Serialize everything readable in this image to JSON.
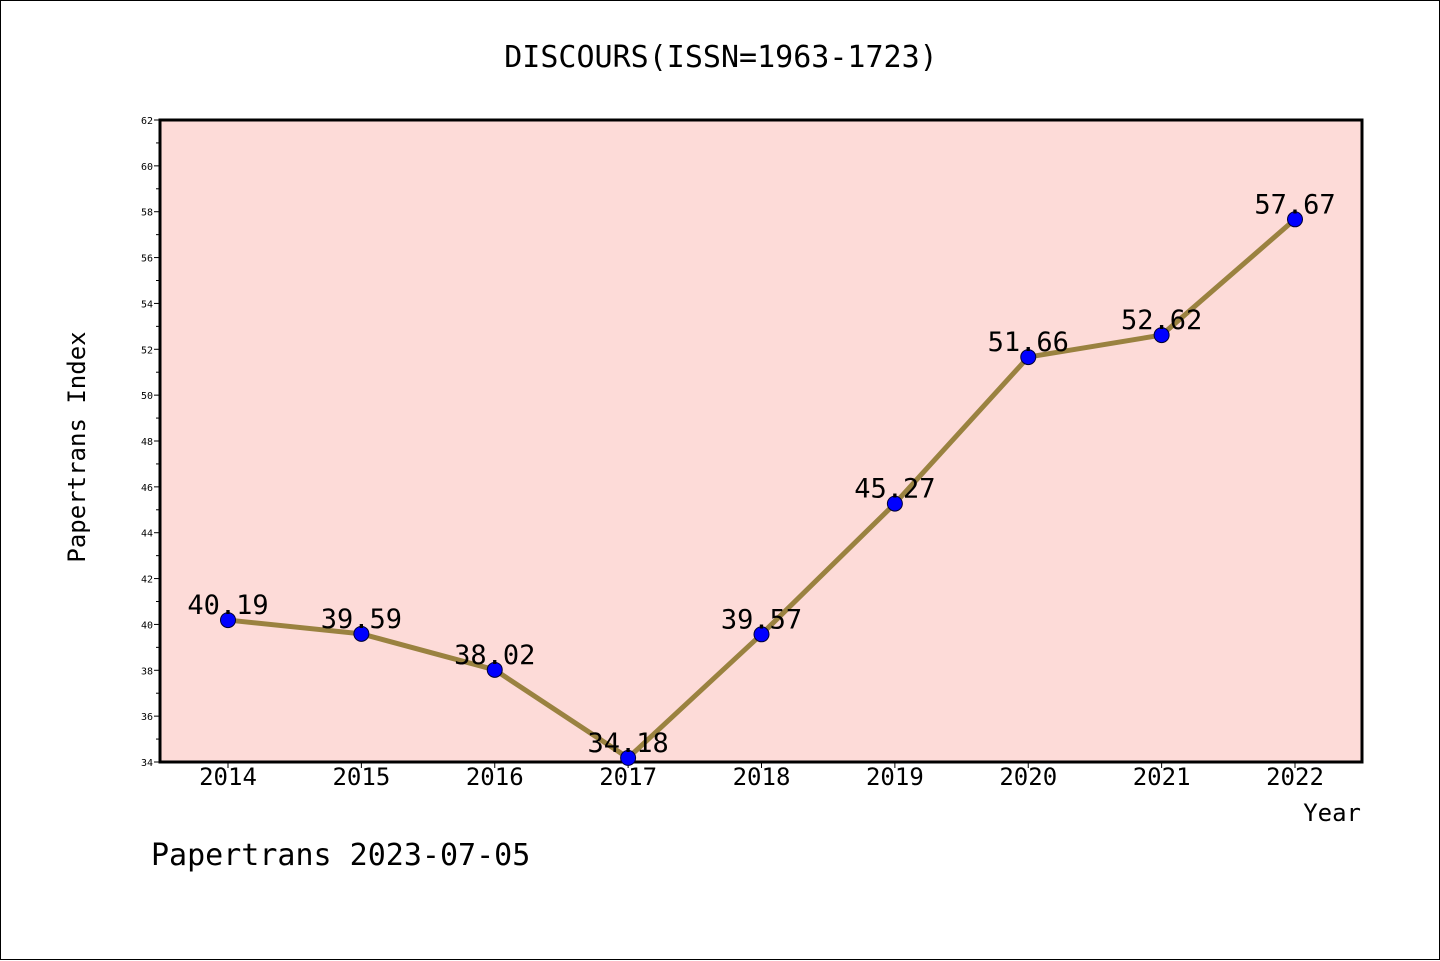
{
  "chart_data": {
    "type": "line",
    "title": "DISCOURS(ISSN=1963-1723)",
    "xlabel": "Year",
    "ylabel": "Papertrans Index",
    "categories": [
      "2014",
      "2015",
      "2016",
      "2017",
      "2018",
      "2019",
      "2020",
      "2021",
      "2022"
    ],
    "series": [
      {
        "values": [
          40.19,
          39.59,
          38.02,
          34.18,
          39.57,
          45.27,
          51.66,
          52.62,
          57.67
        ],
        "data_labels": [
          "40.19",
          "39.59",
          "38.02",
          "34.18",
          "39.57",
          "45.27",
          "51.66",
          "52.62",
          "57.67"
        ],
        "line_color": "#9a8240",
        "marker_color": "#0000ff"
      }
    ],
    "ylim": [
      34,
      62
    ],
    "yticks": [
      "34",
      "36",
      "38",
      "40",
      "42",
      "44",
      "46",
      "48",
      "50",
      "52",
      "54",
      "56",
      "58",
      "60",
      "62"
    ],
    "grid": false,
    "plot_background": "#fddbd8",
    "footer": "Papertrans 2023-07-05"
  }
}
